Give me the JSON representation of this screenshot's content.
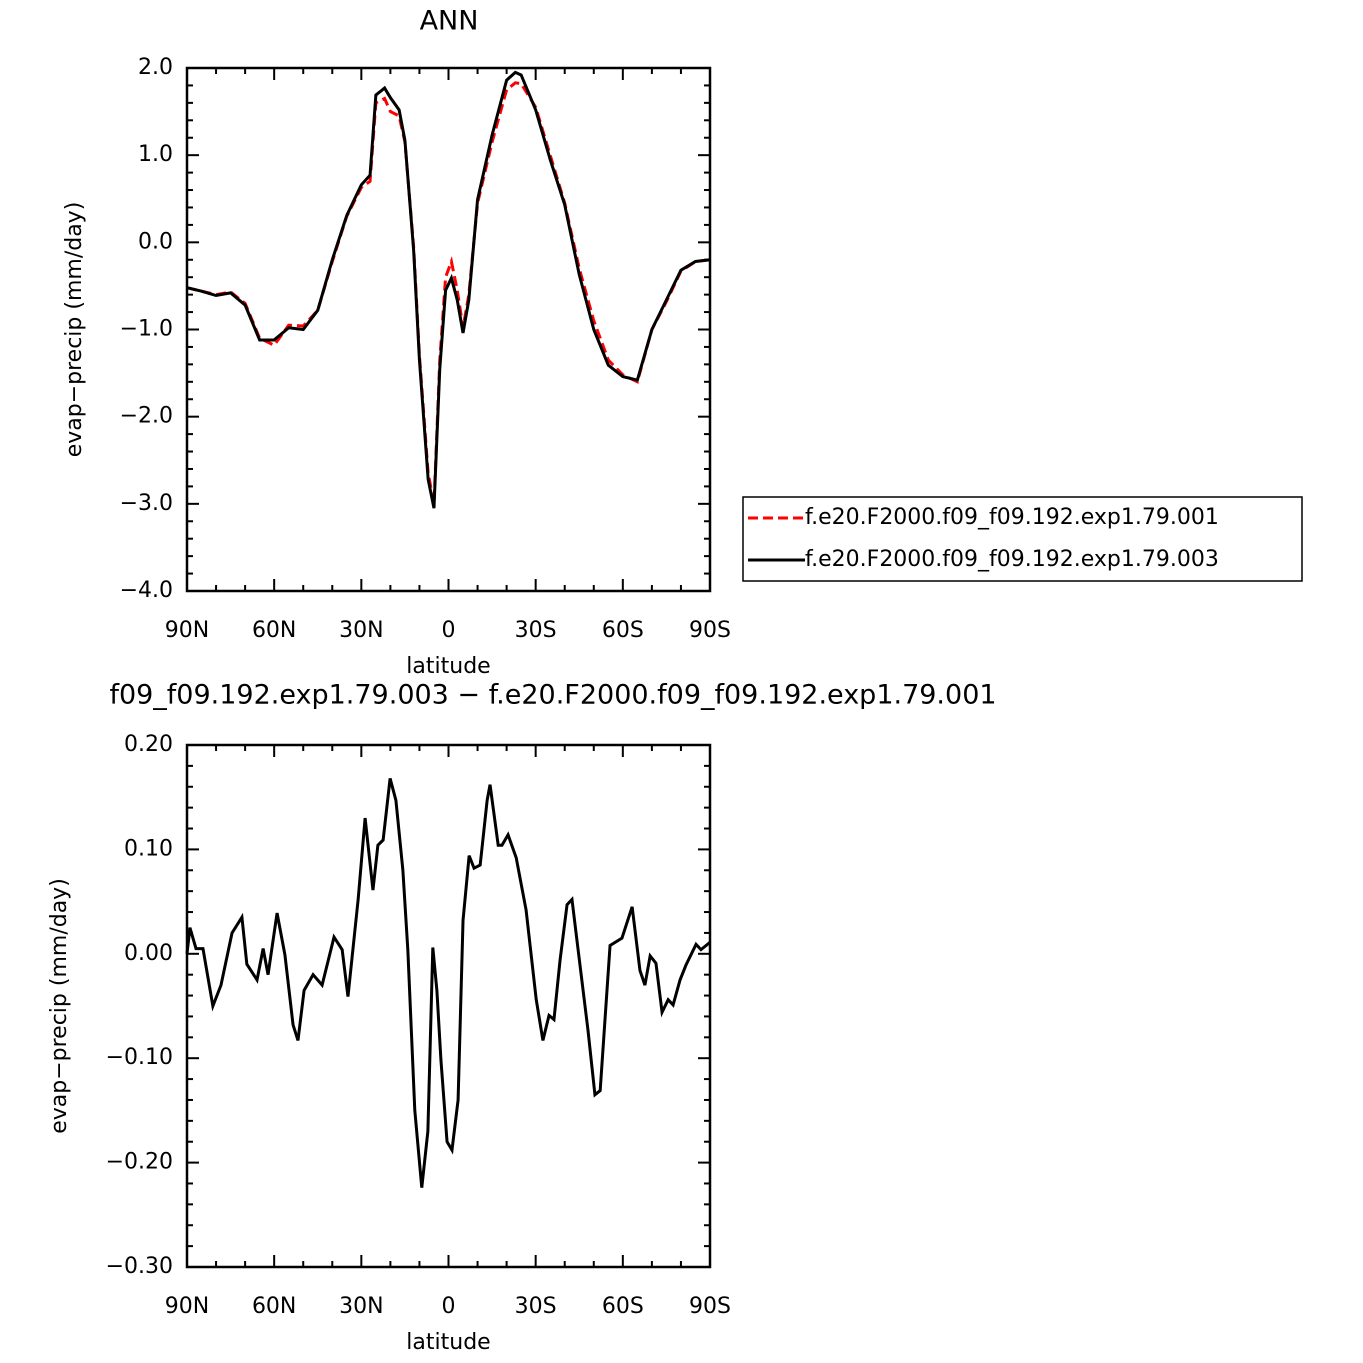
{
  "chart_data": [
    {
      "type": "line",
      "title": "ANN",
      "xlabel": "latitude",
      "ylabel": "evap−precip (mm/day)",
      "x": [
        90,
        85,
        80,
        75,
        70,
        65,
        60,
        55,
        50,
        45,
        40,
        35,
        30,
        27,
        25,
        22,
        20,
        17,
        15,
        12,
        10,
        7,
        5,
        3,
        1,
        -1,
        -3,
        -5,
        -7,
        -10,
        -15,
        -20,
        -23,
        -25,
        -30,
        -35,
        -40,
        -45,
        -50,
        -55,
        -60,
        -65,
        -70,
        -75,
        -80,
        -85,
        -90
      ],
      "series": [
        {
          "name": "f.e20.F2000.f09_f09.192.exp1.79.001",
          "color": "#ff0000",
          "dash": "dashed",
          "values": [
            -0.52,
            -0.56,
            -0.6,
            -0.57,
            -0.7,
            -1.1,
            -1.18,
            -0.95,
            -0.96,
            -0.78,
            -0.22,
            0.3,
            0.63,
            0.7,
            1.6,
            1.65,
            1.5,
            1.45,
            1.15,
            -0.05,
            -1.3,
            -2.65,
            -3.0,
            -1.35,
            -0.4,
            -0.22,
            -0.55,
            -0.98,
            -0.6,
            0.45,
            1.15,
            1.75,
            1.83,
            1.82,
            1.55,
            1.0,
            0.45,
            -0.3,
            -0.9,
            -1.35,
            -1.52,
            -1.6,
            -1.0,
            -0.68,
            -0.33,
            -0.22,
            -0.2
          ]
        },
        {
          "name": "f.e20.F2000.f09_f09.192.exp1.79.003",
          "color": "#000000",
          "dash": "solid",
          "values": [
            -0.52,
            -0.56,
            -0.61,
            -0.58,
            -0.72,
            -1.12,
            -1.12,
            -0.98,
            -1.0,
            -0.78,
            -0.2,
            0.31,
            0.66,
            0.77,
            1.69,
            1.77,
            1.66,
            1.52,
            1.17,
            -0.09,
            -1.35,
            -2.72,
            -3.05,
            -1.45,
            -0.55,
            -0.41,
            -0.66,
            -1.04,
            -0.66,
            0.49,
            1.23,
            1.86,
            1.95,
            1.92,
            1.52,
            0.95,
            0.43,
            -0.37,
            -1.0,
            -1.41,
            -1.54,
            -1.58,
            -1.0,
            -0.66,
            -0.32,
            -0.22,
            -0.2
          ]
        }
      ],
      "xlim": [
        90,
        -90
      ],
      "xticks": [
        {
          "value": 90,
          "label": "90N"
        },
        {
          "value": 60,
          "label": "60N"
        },
        {
          "value": 30,
          "label": "30N"
        },
        0,
        {
          "value": -30,
          "label": "30S"
        },
        {
          "value": -60,
          "label": "60S"
        },
        {
          "value": -90,
          "label": "90S"
        }
      ],
      "ylim": [
        -4,
        2
      ],
      "yticks": [
        {
          "value": -4,
          "label": "−4.0"
        },
        {
          "value": -3,
          "label": "−3.0"
        },
        {
          "value": -2,
          "label": "−2.0"
        },
        {
          "value": -1,
          "label": "−1.0"
        },
        {
          "value": 0,
          "label": "0.0"
        },
        {
          "value": 1,
          "label": "1.0"
        },
        {
          "value": 2,
          "label": "2.0"
        }
      ],
      "legend": "right"
    },
    {
      "type": "line",
      "title": "f09_f09.192.exp1.79.003 − f.e20.F2000.f09_f09.192.exp1.79.001",
      "xlabel": "latitude",
      "ylabel": "evap−precip (mm/day)",
      "x": [
        90,
        89.0,
        86.9,
        84.5,
        81.1,
        78.3,
        74.5,
        71.1,
        69.4,
        65.9,
        63.8,
        62.1,
        59.0,
        56.3,
        53.5,
        51.8,
        49.7,
        46.6,
        43.5,
        39.4,
        36.6,
        34.6,
        31.1,
        28.7,
        26.0,
        24.3,
        22.5,
        20.1,
        18.1,
        15.7,
        14.0,
        11.6,
        9.2,
        7.1,
        5.4,
        4.0,
        2.6,
        0.5,
        -1.2,
        -3.3,
        -5.0,
        -7.1,
        -8.8,
        -10.9,
        -13.3,
        -14.3,
        -17.1,
        -18.4,
        -20.5,
        -23.3,
        -26.7,
        -30.2,
        -32.5,
        -34.6,
        -36.3,
        -38.4,
        -40.8,
        -42.5,
        -44.6,
        -48.0,
        -50.4,
        -52.2,
        -55.6,
        -59.7,
        -63.2,
        -65.9,
        -67.6,
        -69.4,
        -71.4,
        -73.5,
        -75.6,
        -77.3,
        -79.7,
        -81.7,
        -85.2,
        -86.9,
        -90
      ],
      "series": [
        {
          "color": "#000000",
          "dash": "solid",
          "values": [
            0.0,
            0.025,
            0.005,
            0.005,
            -0.05,
            -0.03,
            0.02,
            0.035,
            -0.01,
            -0.025,
            0.005,
            -0.02,
            0.039,
            -0.001,
            -0.068,
            -0.083,
            -0.035,
            -0.02,
            -0.03,
            0.016,
            0.004,
            -0.041,
            0.052,
            0.13,
            0.061,
            0.104,
            0.109,
            0.168,
            0.147,
            0.08,
            0.004,
            -0.15,
            -0.224,
            -0.17,
            0.006,
            -0.035,
            -0.102,
            -0.18,
            -0.188,
            -0.14,
            0.032,
            0.094,
            0.082,
            0.085,
            0.147,
            0.162,
            0.104,
            0.104,
            0.114,
            0.092,
            0.042,
            -0.044,
            -0.083,
            -0.059,
            -0.063,
            -0.006,
            0.047,
            0.052,
            0.004,
            -0.073,
            -0.135,
            -0.131,
            0.008,
            0.015,
            0.045,
            -0.016,
            -0.03,
            -0.002,
            -0.009,
            -0.056,
            -0.044,
            -0.049,
            -0.025,
            -0.011,
            0.009,
            0.004,
            0.011
          ]
        }
      ],
      "xlim": [
        90,
        -90
      ],
      "xticks": [
        {
          "value": 90,
          "label": "90N"
        },
        {
          "value": 60,
          "label": "60N"
        },
        {
          "value": 30,
          "label": "30N"
        },
        0,
        {
          "value": -30,
          "label": "30S"
        },
        {
          "value": -60,
          "label": "60S"
        },
        {
          "value": -90,
          "label": "90S"
        }
      ],
      "ylim": [
        -0.3,
        0.2
      ],
      "yticks": [
        {
          "value": -0.3,
          "label": "−0.30"
        },
        {
          "value": -0.2,
          "label": "−0.20"
        },
        {
          "value": -0.1,
          "label": "−0.10"
        },
        {
          "value": 0,
          "label": "0.00"
        },
        {
          "value": 0.1,
          "label": "0.10"
        },
        {
          "value": 0.2,
          "label": "0.20"
        }
      ]
    }
  ]
}
